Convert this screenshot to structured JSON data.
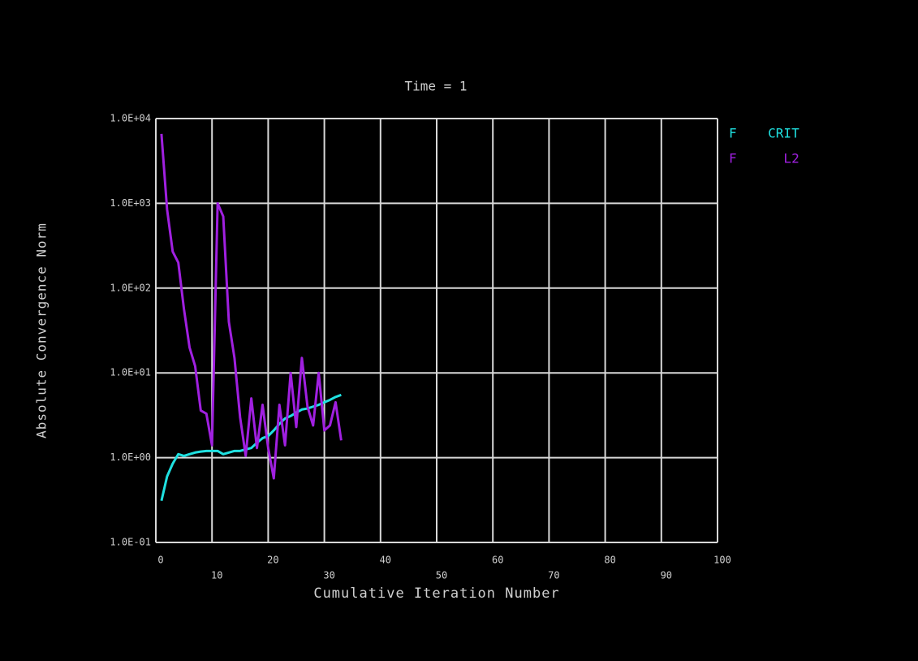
{
  "chart_data": {
    "type": "line",
    "title": "Time = 1",
    "x_label": "Cumulative Iteration Number",
    "y_label": "Absolute Convergence Norm",
    "x": [
      1,
      2,
      3,
      4,
      5,
      6,
      7,
      8,
      9,
      10,
      11,
      12,
      13,
      14,
      15,
      16,
      17,
      18,
      19,
      20,
      21,
      22,
      23,
      24,
      25,
      26,
      27,
      28,
      29,
      30,
      31,
      32,
      33
    ],
    "series": [
      {
        "name": "F    CRIT",
        "color": "#1fe0e0",
        "values": [
          0.31,
          0.6,
          0.85,
          1.1,
          1.05,
          1.1,
          1.15,
          1.18,
          1.2,
          1.2,
          1.2,
          1.1,
          1.15,
          1.2,
          1.2,
          1.25,
          1.3,
          1.5,
          1.7,
          1.8,
          2.1,
          2.5,
          2.9,
          3.1,
          3.4,
          3.7,
          3.8,
          4.0,
          4.2,
          4.5,
          4.8,
          5.2,
          5.5
        ]
      },
      {
        "name": "F      L2",
        "color": "#a020e0",
        "values": [
          6600,
          850,
          270,
          200,
          57,
          20,
          12,
          3.6,
          3.3,
          1.4,
          1000,
          700,
          40,
          15,
          3,
          1.05,
          5,
          1.3,
          4.2,
          1.3,
          0.57,
          4.2,
          1.4,
          10,
          2.3,
          15,
          4,
          2.4,
          10,
          2.1,
          2.4,
          4.5,
          1.6
        ]
      }
    ],
    "xlim": [
      0,
      100
    ],
    "xticks": [
      0,
      10,
      20,
      30,
      40,
      50,
      60,
      70,
      80,
      90,
      100
    ],
    "ylim": [
      0.1,
      10000
    ],
    "yticks": [
      {
        "value": 0.1,
        "label": "1.0E-01"
      },
      {
        "value": 1,
        "label": "1.0E+00"
      },
      {
        "value": 10,
        "label": "1.0E+01"
      },
      {
        "value": 100,
        "label": "1.0E+02"
      },
      {
        "value": 1000,
        "label": "1.0E+03"
      },
      {
        "value": 10000,
        "label": "1.0E+04"
      }
    ],
    "y_scale": "log",
    "grid": true
  }
}
